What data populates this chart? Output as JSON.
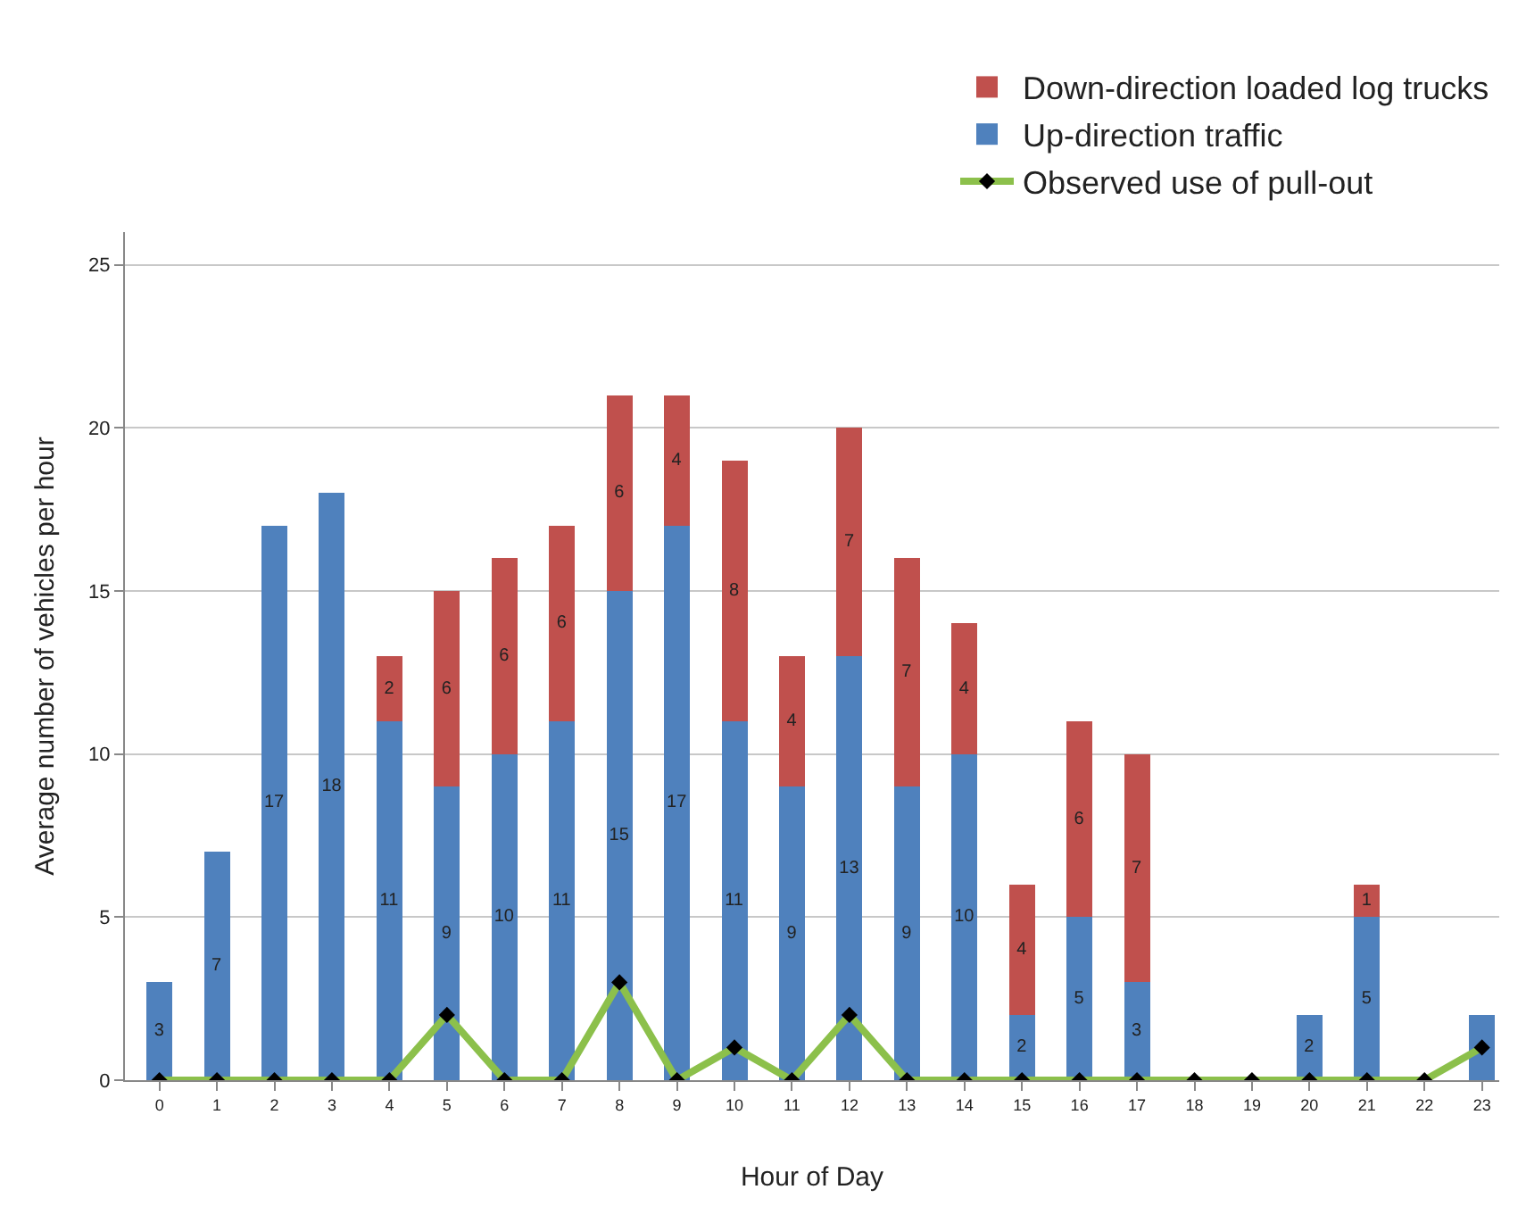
{
  "chart_data": {
    "type": "bar",
    "stacked": true,
    "ylabel": "Average number of vehicles per hour",
    "xlabel": "Hour of Day",
    "x": [
      0,
      1,
      2,
      3,
      4,
      5,
      6,
      7,
      8,
      9,
      10,
      11,
      12,
      13,
      14,
      15,
      16,
      17,
      18,
      19,
      20,
      21,
      22,
      23
    ],
    "xlim": [
      -0.6,
      23.3
    ],
    "xticks": [
      0,
      1,
      2,
      3,
      4,
      5,
      6,
      7,
      8,
      9,
      10,
      11,
      12,
      13,
      14,
      15,
      16,
      17,
      18,
      19,
      20,
      21,
      22,
      23
    ],
    "series": [
      {
        "name": "Up-direction traffic",
        "color": "#4f81bd",
        "values": [
          3,
          7,
          17,
          18,
          11,
          9,
          10,
          11,
          15,
          17,
          11,
          9,
          13,
          9,
          10,
          2,
          5,
          3,
          0,
          0,
          2,
          5,
          0,
          2
        ],
        "value_labels": [
          "3",
          "7",
          "17",
          "18",
          "11",
          "9",
          "10",
          "11",
          "15",
          "17",
          "11",
          "9",
          "13",
          "9",
          "10",
          "2",
          "5",
          "3",
          null,
          null,
          "2",
          "5",
          null,
          null
        ]
      },
      {
        "name": "Down-direction loaded log trucks",
        "color": "#c0504d",
        "values": [
          0,
          0,
          0,
          0,
          2,
          6,
          6,
          6,
          6,
          4,
          8,
          4,
          7,
          7,
          4,
          4,
          6,
          7,
          0,
          0,
          0,
          1,
          0,
          0
        ],
        "value_labels": [
          null,
          null,
          null,
          null,
          "2",
          "6",
          "6",
          "6",
          "6",
          "4",
          "8",
          "4",
          "7",
          "7",
          "4",
          "4",
          "6",
          "7",
          null,
          null,
          null,
          "1",
          null,
          null
        ]
      },
      {
        "name": "Observed use of pull-out",
        "type": "line",
        "color": "#8cc04b",
        "marker": "diamond",
        "values": [
          0,
          0,
          0,
          0,
          0,
          2,
          0,
          0,
          3,
          0,
          1,
          0,
          2,
          0,
          0,
          0,
          0,
          0,
          0,
          0,
          0,
          0,
          0,
          1
        ]
      }
    ],
    "ylim": [
      0,
      26
    ],
    "yticks": [
      0,
      5,
      10,
      15,
      20,
      25
    ],
    "grid": "y",
    "legend": "top right"
  }
}
